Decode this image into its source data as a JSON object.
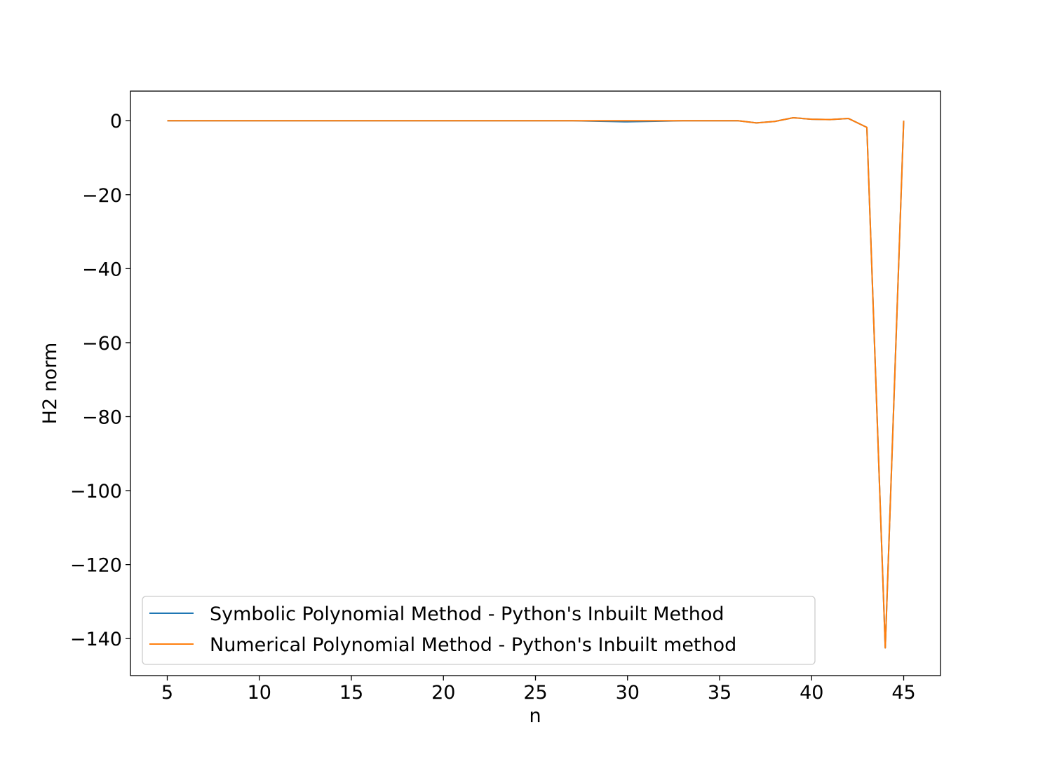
{
  "chart_data": {
    "type": "line",
    "xlabel": "n",
    "ylabel": "H2 norm",
    "xlim": [
      3,
      47
    ],
    "ylim": [
      -150,
      8
    ],
    "xticks": [
      5,
      10,
      15,
      20,
      25,
      30,
      35,
      40,
      45
    ],
    "yticks": [
      0,
      -20,
      -40,
      -60,
      -80,
      -100,
      -120,
      -140
    ],
    "ytick_labels": [
      "0",
      "−20",
      "−40",
      "−60",
      "−80",
      "−100",
      "−120",
      "−140"
    ],
    "grid": false,
    "legend_position": "lower-left",
    "x": [
      5,
      6,
      7,
      8,
      9,
      10,
      11,
      12,
      13,
      14,
      15,
      16,
      17,
      18,
      19,
      20,
      21,
      22,
      23,
      24,
      25,
      26,
      27,
      28,
      29,
      30,
      31,
      32,
      33,
      34,
      35,
      36,
      37,
      38,
      39,
      40,
      41,
      42,
      43,
      44,
      45
    ],
    "series": [
      {
        "name": "Symbolic Polynomial Method - Python's Inbuilt Method",
        "color": "#1f77b4",
        "values": [
          0,
          0,
          0,
          0,
          0,
          0,
          0,
          0,
          0,
          0,
          0,
          0,
          0,
          0,
          0,
          0,
          0,
          0,
          0,
          0,
          0,
          0,
          0,
          -0.1,
          -0.2,
          -0.3,
          -0.2,
          -0.1,
          0,
          0,
          0,
          0,
          -0.6,
          -0.2,
          0.8,
          0.4,
          0.3,
          0.6,
          -1.8,
          -142.5,
          0
        ]
      },
      {
        "name": "Numerical Polynomial Method - Python's Inbuilt method",
        "color": "#ff7f0e",
        "values": [
          0,
          0,
          0,
          0,
          0,
          0,
          0,
          0,
          0,
          0,
          0,
          0,
          0,
          0,
          0,
          0,
          0,
          0,
          0,
          0,
          0,
          0,
          0,
          0,
          0,
          0,
          0,
          0,
          0,
          0,
          0,
          0,
          -0.6,
          -0.2,
          0.8,
          0.4,
          0.3,
          0.6,
          -1.8,
          -142.5,
          0
        ]
      }
    ]
  }
}
